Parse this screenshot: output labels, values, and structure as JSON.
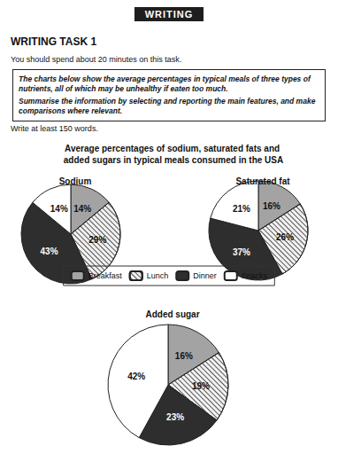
{
  "header": {
    "section": "WRITING",
    "task": "WRITING TASK 1",
    "instruction": "You should spend about 20 minutes on this task."
  },
  "prompt": {
    "description": "The charts below show the average percentages in typical meals of three types of nutrients, all of which may be unhealthy if eaten too much.",
    "instruction": "Summarise the information by selecting and reporting the main features, and make comparisons where relevant."
  },
  "word_limit": "Write at least 150 words.",
  "figure_title": "Average percentages of sodium, saturated fats and added sugars in typical meals consumed in the USA",
  "chart_data": [
    {
      "type": "pie",
      "title": "Sodium",
      "categories": [
        "Breakfast",
        "Lunch",
        "Dinner",
        "Snacks"
      ],
      "values": [
        14,
        29,
        43,
        14
      ],
      "value_labels": [
        "14%",
        "29%",
        "43%",
        "14%"
      ],
      "colors": [
        "#a3a3a3",
        "#f2f2f2",
        "#2e2e2e",
        "#ffffff"
      ],
      "data_labels": true
    },
    {
      "type": "pie",
      "title": "Saturated fat",
      "categories": [
        "Breakfast",
        "Lunch",
        "Dinner",
        "Snacks"
      ],
      "values": [
        16,
        26,
        37,
        21
      ],
      "value_labels": [
        "16%",
        "26%",
        "37%",
        "21%"
      ],
      "colors": [
        "#a3a3a3",
        "#f2f2f2",
        "#2e2e2e",
        "#ffffff"
      ],
      "data_labels": true
    },
    {
      "type": "pie",
      "title": "Added sugar",
      "categories": [
        "Breakfast",
        "Lunch",
        "Dinner",
        "Snacks"
      ],
      "values": [
        16,
        19,
        23,
        42
      ],
      "value_labels": [
        "16%",
        "19%",
        "23%",
        "42%"
      ],
      "colors": [
        "#a3a3a3",
        "#f2f2f2",
        "#2e2e2e",
        "#ffffff"
      ],
      "data_labels": true
    }
  ]
}
